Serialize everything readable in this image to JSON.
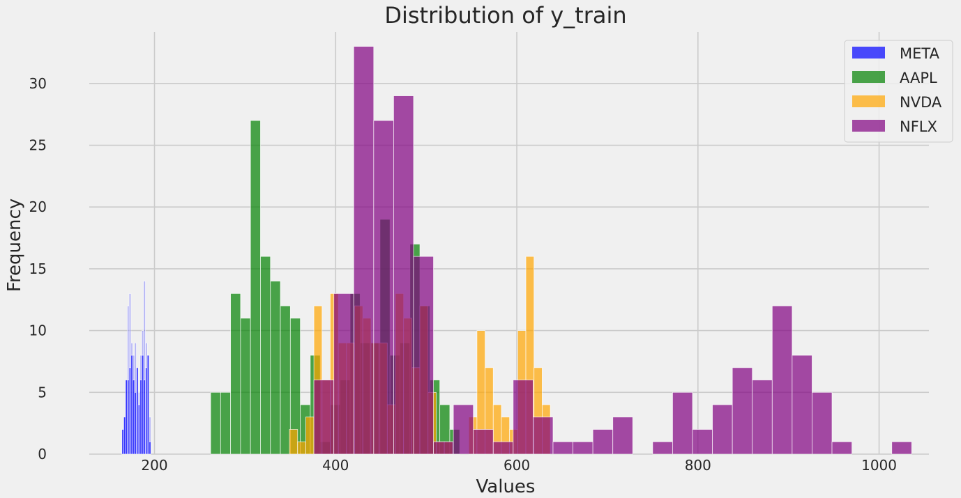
{
  "chart_data": {
    "type": "histogram",
    "title": "Distribution of y_train",
    "xlabel": "Values",
    "ylabel": "Frequency",
    "xlim": [
      128,
      1055
    ],
    "ylim": [
      0,
      34.5
    ],
    "xticks": [
      200,
      400,
      600,
      800,
      1000
    ],
    "yticks": [
      0,
      5,
      10,
      15,
      20,
      25,
      30
    ],
    "grid": true,
    "legend_position": "top-right",
    "series": [
      {
        "name": "META",
        "color": "#0000ff",
        "alpha": 0.25,
        "bins": [
          {
            "x0": 164,
            "x1": 166,
            "count": 2
          },
          {
            "x0": 166,
            "x1": 168,
            "count": 3
          },
          {
            "x0": 168,
            "x1": 170,
            "count": 6
          },
          {
            "x0": 170,
            "x1": 172,
            "count": 12
          },
          {
            "x0": 172,
            "x1": 174,
            "count": 13
          },
          {
            "x0": 174,
            "x1": 176,
            "count": 9
          },
          {
            "x0": 176,
            "x1": 178,
            "count": 8
          },
          {
            "x0": 178,
            "x1": 180,
            "count": 9
          },
          {
            "x0": 180,
            "x1": 182,
            "count": 7
          },
          {
            "x0": 182,
            "x1": 184,
            "count": 5
          },
          {
            "x0": 184,
            "x1": 186,
            "count": 8
          },
          {
            "x0": 186,
            "x1": 188,
            "count": 10
          },
          {
            "x0": 188,
            "x1": 190,
            "count": 14
          },
          {
            "x0": 190,
            "x1": 192,
            "count": 9
          },
          {
            "x0": 192,
            "x1": 194,
            "count": 8
          },
          {
            "x0": 194,
            "x1": 196,
            "count": 3
          }
        ]
      },
      {
        "name": "META",
        "color": "#0000ff",
        "alpha": 0.7,
        "bins": [
          {
            "x0": 164,
            "x1": 166,
            "count": 2
          },
          {
            "x0": 166,
            "x1": 168,
            "count": 3
          },
          {
            "x0": 168,
            "x1": 170,
            "count": 6
          },
          {
            "x0": 170,
            "x1": 172,
            "count": 6
          },
          {
            "x0": 172,
            "x1": 174,
            "count": 7
          },
          {
            "x0": 174,
            "x1": 176,
            "count": 8
          },
          {
            "x0": 176,
            "x1": 178,
            "count": 6
          },
          {
            "x0": 178,
            "x1": 180,
            "count": 5
          },
          {
            "x0": 180,
            "x1": 182,
            "count": 7
          },
          {
            "x0": 182,
            "x1": 184,
            "count": 4
          },
          {
            "x0": 184,
            "x1": 186,
            "count": 6
          },
          {
            "x0": 186,
            "x1": 188,
            "count": 8
          },
          {
            "x0": 188,
            "x1": 190,
            "count": 6
          },
          {
            "x0": 190,
            "x1": 192,
            "count": 7
          },
          {
            "x0": 192,
            "x1": 194,
            "count": 8
          },
          {
            "x0": 194,
            "x1": 196,
            "count": 1
          }
        ]
      },
      {
        "name": "AAPL",
        "color": "#008000",
        "alpha": 0.7,
        "bins": [
          {
            "x0": 262,
            "x1": 273,
            "count": 5
          },
          {
            "x0": 273,
            "x1": 284,
            "count": 5
          },
          {
            "x0": 284,
            "x1": 295,
            "count": 13
          },
          {
            "x0": 295,
            "x1": 306,
            "count": 11
          },
          {
            "x0": 306,
            "x1": 317,
            "count": 27
          },
          {
            "x0": 317,
            "x1": 328,
            "count": 16
          },
          {
            "x0": 328,
            "x1": 339,
            "count": 14
          },
          {
            "x0": 339,
            "x1": 350,
            "count": 12
          },
          {
            "x0": 350,
            "x1": 361,
            "count": 11
          },
          {
            "x0": 361,
            "x1": 372,
            "count": 4
          },
          {
            "x0": 372,
            "x1": 383,
            "count": 8
          },
          {
            "x0": 383,
            "x1": 394,
            "count": 1
          },
          {
            "x0": 394,
            "x1": 405,
            "count": 4
          },
          {
            "x0": 405,
            "x1": 416,
            "count": 6
          },
          {
            "x0": 416,
            "x1": 427,
            "count": 13
          },
          {
            "x0": 427,
            "x1": 438,
            "count": 9
          },
          {
            "x0": 438,
            "x1": 449,
            "count": 9
          },
          {
            "x0": 449,
            "x1": 460,
            "count": 19
          },
          {
            "x0": 460,
            "x1": 471,
            "count": 8
          },
          {
            "x0": 471,
            "x1": 482,
            "count": 9
          },
          {
            "x0": 482,
            "x1": 493,
            "count": 17
          },
          {
            "x0": 493,
            "x1": 504,
            "count": 12
          },
          {
            "x0": 504,
            "x1": 515,
            "count": 6
          },
          {
            "x0": 515,
            "x1": 526,
            "count": 4
          },
          {
            "x0": 526,
            "x1": 537,
            "count": 2
          }
        ]
      },
      {
        "name": "NVDA",
        "color": "#ffa500",
        "alpha": 0.7,
        "bins": [
          {
            "x0": 349,
            "x1": 358,
            "count": 2
          },
          {
            "x0": 358,
            "x1": 367,
            "count": 1
          },
          {
            "x0": 367,
            "x1": 376,
            "count": 3
          },
          {
            "x0": 376,
            "x1": 385,
            "count": 12
          },
          {
            "x0": 385,
            "x1": 394,
            "count": 6
          },
          {
            "x0": 394,
            "x1": 403,
            "count": 13
          },
          {
            "x0": 403,
            "x1": 412,
            "count": 9
          },
          {
            "x0": 412,
            "x1": 421,
            "count": 9
          },
          {
            "x0": 421,
            "x1": 430,
            "count": 12
          },
          {
            "x0": 430,
            "x1": 439,
            "count": 11
          },
          {
            "x0": 439,
            "x1": 448,
            "count": 9
          },
          {
            "x0": 448,
            "x1": 457,
            "count": 9
          },
          {
            "x0": 457,
            "x1": 466,
            "count": 4
          },
          {
            "x0": 466,
            "x1": 475,
            "count": 13
          },
          {
            "x0": 475,
            "x1": 484,
            "count": 11
          },
          {
            "x0": 484,
            "x1": 493,
            "count": 7
          },
          {
            "x0": 493,
            "x1": 502,
            "count": 12
          },
          {
            "x0": 502,
            "x1": 511,
            "count": 5
          },
          {
            "x0": 511,
            "x1": 520,
            "count": 1
          },
          {
            "x0": 520,
            "x1": 529,
            "count": 1
          },
          {
            "x0": 529,
            "x1": 538,
            "count": 0
          },
          {
            "x0": 538,
            "x1": 547,
            "count": 0
          },
          {
            "x0": 547,
            "x1": 556,
            "count": 3
          },
          {
            "x0": 556,
            "x1": 565,
            "count": 10
          },
          {
            "x0": 565,
            "x1": 574,
            "count": 7
          },
          {
            "x0": 574,
            "x1": 583,
            "count": 4
          },
          {
            "x0": 583,
            "x1": 592,
            "count": 3
          },
          {
            "x0": 592,
            "x1": 601,
            "count": 2
          },
          {
            "x0": 601,
            "x1": 610,
            "count": 10
          },
          {
            "x0": 610,
            "x1": 619,
            "count": 16
          },
          {
            "x0": 619,
            "x1": 628,
            "count": 7
          },
          {
            "x0": 628,
            "x1": 637,
            "count": 4
          }
        ]
      },
      {
        "name": "NFLX",
        "color": "#800080",
        "alpha": 0.7,
        "bins": [
          {
            "x0": 376,
            "x1": 398,
            "count": 6
          },
          {
            "x0": 398,
            "x1": 420,
            "count": 13
          },
          {
            "x0": 420,
            "x1": 442,
            "count": 33
          },
          {
            "x0": 442,
            "x1": 464,
            "count": 27
          },
          {
            "x0": 464,
            "x1": 486,
            "count": 29
          },
          {
            "x0": 486,
            "x1": 508,
            "count": 16
          },
          {
            "x0": 508,
            "x1": 530,
            "count": 1
          },
          {
            "x0": 530,
            "x1": 552,
            "count": 4
          },
          {
            "x0": 552,
            "x1": 574,
            "count": 2
          },
          {
            "x0": 574,
            "x1": 596,
            "count": 1
          },
          {
            "x0": 596,
            "x1": 618,
            "count": 6
          },
          {
            "x0": 618,
            "x1": 640,
            "count": 3
          },
          {
            "x0": 640,
            "x1": 662,
            "count": 1
          },
          {
            "x0": 662,
            "x1": 684,
            "count": 1
          },
          {
            "x0": 684,
            "x1": 706,
            "count": 2
          },
          {
            "x0": 706,
            "x1": 728,
            "count": 3
          },
          {
            "x0": 728,
            "x1": 750,
            "count": 0
          },
          {
            "x0": 750,
            "x1": 772,
            "count": 1
          },
          {
            "x0": 772,
            "x1": 794,
            "count": 5
          },
          {
            "x0": 794,
            "x1": 816,
            "count": 2
          },
          {
            "x0": 816,
            "x1": 838,
            "count": 4
          },
          {
            "x0": 838,
            "x1": 860,
            "count": 7
          },
          {
            "x0": 860,
            "x1": 882,
            "count": 6
          },
          {
            "x0": 882,
            "x1": 904,
            "count": 12
          },
          {
            "x0": 904,
            "x1": 926,
            "count": 8
          },
          {
            "x0": 926,
            "x1": 948,
            "count": 5
          },
          {
            "x0": 948,
            "x1": 970,
            "count": 1
          },
          {
            "x0": 970,
            "x1": 992,
            "count": 0
          },
          {
            "x0": 992,
            "x1": 1014,
            "count": 0
          },
          {
            "x0": 1014,
            "x1": 1036,
            "count": 1
          }
        ]
      }
    ],
    "legend": [
      {
        "label": "META",
        "color": "#0000ff"
      },
      {
        "label": "AAPL",
        "color": "#008000"
      },
      {
        "label": "NVDA",
        "color": "#ffa500"
      },
      {
        "label": "NFLX",
        "color": "#800080"
      }
    ]
  }
}
